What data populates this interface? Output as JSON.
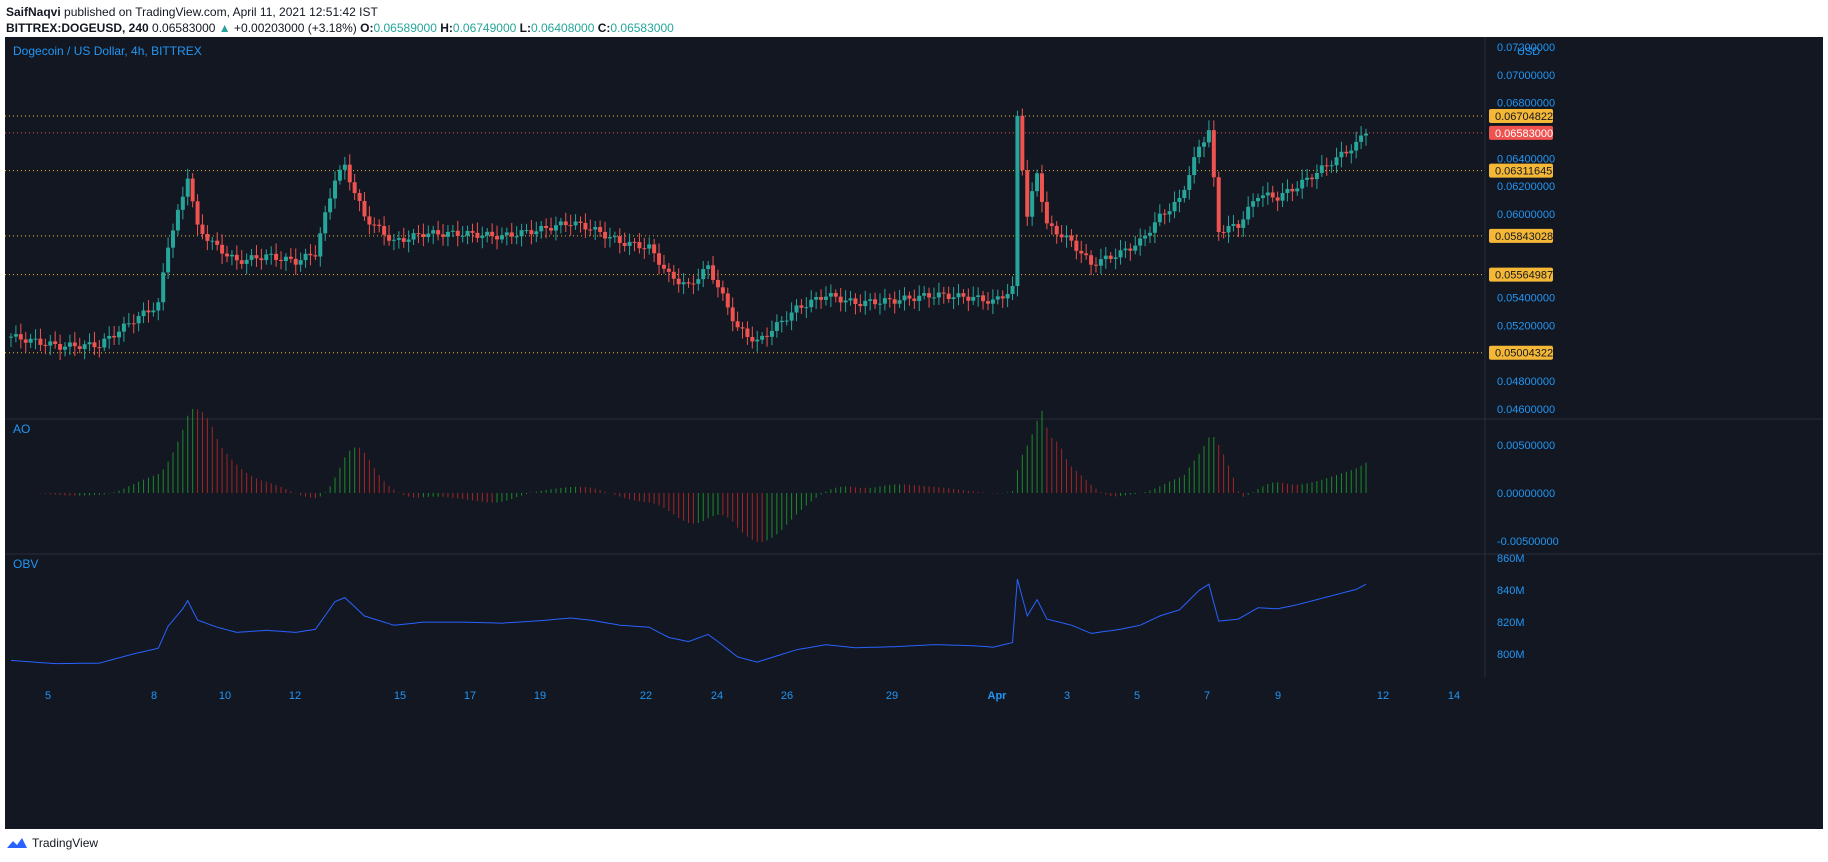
{
  "header": {
    "author": "SaifNaqvi",
    "published": "published on TradingView.com, April 11, 2021 12:51:42 IST"
  },
  "ticker": {
    "symbol": "BITTREX:DOGEUSD, 240",
    "last": "0.06583000",
    "change": "+0.00203000 (+3.18%)",
    "open_label": "O:",
    "open": "0.06589000",
    "high_label": "H:",
    "high": "0.06749000",
    "low_label": "L:",
    "low": "0.06408000",
    "close_label": "C:",
    "close": "0.06583000"
  },
  "chart": {
    "title": "Dogecoin / US Dollar, 4h, BITTREX",
    "currency": "USD",
    "price_ticks": [
      "0.07200000",
      "0.07000000",
      "0.06800000",
      "0.06400000",
      "0.06200000",
      "0.06000000",
      "0.05400000",
      "0.05200000",
      "0.04800000",
      "0.04600000"
    ],
    "level_labels": [
      "0.06704822",
      "0.06311645",
      "0.05843028",
      "0.05564987",
      "0.05004322"
    ],
    "level_values": [
      0.06704822,
      0.06311645,
      0.05843028,
      0.05564987,
      0.05004322
    ],
    "current_price_label": "0.06583000",
    "current_price_value": 0.06583,
    "x_ticks": [
      "5",
      "8",
      "10",
      "12",
      "15",
      "17",
      "19",
      "22",
      "24",
      "26",
      "29",
      "Apr",
      "3",
      "5",
      "7",
      "9",
      "12",
      "14"
    ],
    "colors": {
      "up": "#26a69a",
      "down": "#ef5350",
      "level": "#f5b836",
      "ao_up": "#1b8a2a",
      "ao_down": "#a12626",
      "obv": "#2962ff",
      "text": "#b2b5be",
      "accent": "#2196f3"
    }
  },
  "ao": {
    "label": "AO",
    "ticks": [
      "0.00500000",
      "0.00000000",
      "-0.00500000"
    ]
  },
  "obv": {
    "label": "OBV",
    "ticks": [
      "860M",
      "840M",
      "820M",
      "800M"
    ]
  },
  "footer": {
    "brand": "TradingView"
  }
}
